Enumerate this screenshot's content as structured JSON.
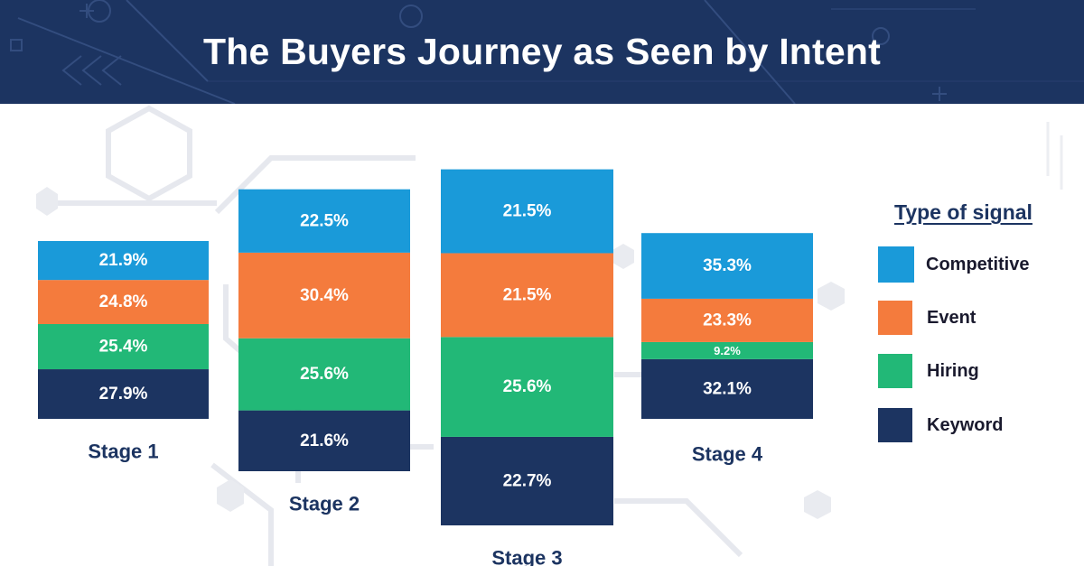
{
  "header": {
    "title": "The Buyers Journey as Seen by Intent"
  },
  "colors": {
    "competitive": "#1a9ad9",
    "event": "#f47b3d",
    "hiring": "#22b877",
    "keyword": "#1c3461",
    "header_bg": "#1c3461"
  },
  "legend": {
    "title": "Type of signal",
    "items": [
      {
        "label": "Competitive",
        "color": "#1a9ad9"
      },
      {
        "label": "Event",
        "color": "#f47b3d"
      },
      {
        "label": "Hiring",
        "color": "#22b877"
      },
      {
        "label": "Keyword",
        "color": "#1c3461"
      }
    ]
  },
  "chart_data": {
    "type": "bar",
    "stacked": true,
    "categories": [
      "Stage 1",
      "Stage 2",
      "Stage 3",
      "Stage 4"
    ],
    "series": [
      {
        "name": "Keyword",
        "color": "#1c3461",
        "values": [
          27.9,
          21.6,
          22.7,
          32.1
        ]
      },
      {
        "name": "Hiring",
        "color": "#22b877",
        "values": [
          25.4,
          25.6,
          25.6,
          9.2
        ]
      },
      {
        "name": "Event",
        "color": "#f47b3d",
        "values": [
          24.8,
          30.4,
          21.5,
          23.3
        ]
      },
      {
        "name": "Competitive",
        "color": "#1a9ad9",
        "values": [
          21.9,
          22.5,
          21.5,
          35.3
        ]
      }
    ],
    "data_labels": [
      [
        "27.9%",
        "21.6%",
        "22.7%",
        "32.1%"
      ],
      [
        "25.4%",
        "25.6%",
        "25.6%",
        "9.2%"
      ],
      [
        "24.8%",
        "30.4%",
        "21.5%",
        "23.3%"
      ],
      [
        "21.9%",
        "22.5%",
        "21.5%",
        "35.3%"
      ]
    ],
    "legend_position": "right",
    "grid": false
  }
}
